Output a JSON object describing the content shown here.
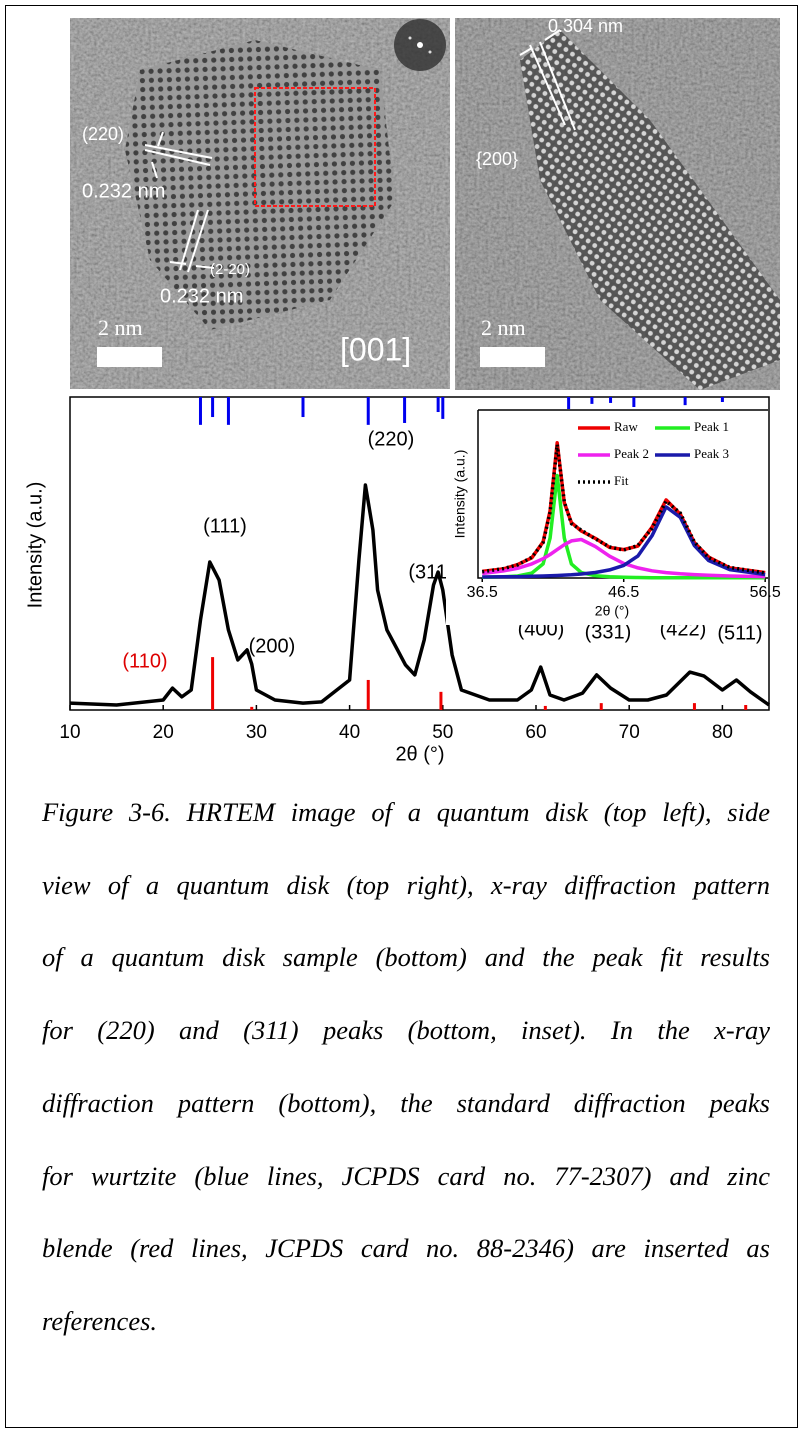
{
  "images": [
    {
      "labels": [
        "(220)",
        "0.232 nm",
        "(2-20)",
        "0.232 nm",
        "2 nm",
        "[001]"
      ]
    },
    {
      "labels": [
        "0.304 nm",
        "{200}",
        "2 nm"
      ]
    }
  ],
  "chart_data": [
    {
      "type": "line",
      "y_label": "Intensity (a.u.)",
      "x_label": "2θ (°)",
      "xlim": [
        10,
        85
      ],
      "ylim": [
        0,
        100
      ],
      "xticks": [
        10,
        20,
        30,
        40,
        50,
        60,
        70,
        80
      ],
      "x": [
        10,
        15,
        20,
        21,
        22,
        23,
        24,
        25,
        26,
        27,
        28,
        29,
        29.5,
        30,
        32,
        35,
        37,
        40,
        41,
        41.7,
        42.5,
        43,
        44,
        46,
        47,
        48,
        49,
        49.5,
        50,
        51,
        52,
        55,
        58,
        59.5,
        60.5,
        61.5,
        63,
        65,
        66.5,
        68,
        70,
        72,
        74,
        76.5,
        78,
        80,
        81.5,
        83,
        85
      ],
      "series": [
        {
          "color": "#000000",
          "values": [
            2.2,
            1.6,
            3.2,
            7.0,
            4.2,
            6.4,
            28.8,
            47.3,
            41.5,
            25.6,
            16.0,
            19.2,
            14.7,
            6.4,
            3.2,
            2.2,
            2.6,
            9.6,
            47.9,
            71.9,
            57.5,
            38.3,
            25.6,
            14.4,
            11.2,
            22.4,
            39.9,
            44.1,
            38.3,
            17.6,
            6.4,
            3.2,
            3.2,
            6.4,
            13.7,
            4.8,
            3.2,
            5.4,
            11.2,
            7.0,
            3.2,
            3.2,
            4.8,
            12.1,
            10.9,
            6.4,
            9.6,
            5.8,
            1.6
          ]
        }
      ],
      "references": [
        {
          "color": "#0000ee",
          "from": "top",
          "x": [
            24,
            25.3,
            27,
            35,
            42,
            45.9,
            49.5,
            50,
            63.5,
            66,
            68,
            70.5,
            76,
            80
          ],
          "values": [
            8.9,
            6.4,
            8.9,
            6.4,
            8.9,
            8.3,
            4.8,
            7.0,
            4.2,
            2.2,
            1.9,
            3.2,
            2.6,
            1.6
          ]
        },
        {
          "color": "#ee0000",
          "from": "bottom",
          "x": [
            25.3,
            29.5,
            42,
            49.8,
            61,
            67,
            77,
            82.5
          ],
          "values": [
            16.9,
            1.0,
            9.6,
            5.8,
            1.3,
            2.2,
            2.2,
            1.6
          ]
        }
      ],
      "annotations": [
        {
          "text": "(110)",
          "color": "#dd0000"
        },
        {
          "text": "(111)",
          "color": "#000000"
        },
        {
          "text": "(200)",
          "color": "#000000"
        },
        {
          "text": "(220)",
          "color": "#000000"
        },
        {
          "text": "(311)",
          "color": "#000000"
        },
        {
          "text": "(400)",
          "color": "#000000"
        },
        {
          "text": "(331)",
          "color": "#000000"
        },
        {
          "text": "(422)",
          "color": "#000000"
        },
        {
          "text": "(511)",
          "color": "#000000"
        }
      ]
    },
    {
      "type": "line",
      "y_label": "Intensity (a.u.)",
      "x_label": "2θ (°)",
      "xlim": [
        36.2,
        56.7
      ],
      "ylim": [
        0,
        100
      ],
      "xticks": [
        36.5,
        46.5,
        56.5
      ],
      "legend": "top",
      "x": [
        36.5,
        38,
        39,
        40,
        40.8,
        41.3,
        41.8,
        42.3,
        42.8,
        43.5,
        44.5,
        45.5,
        46.5,
        47.5,
        48.5,
        49.5,
        50.5,
        51.5,
        52.5,
        54,
        56.5
      ],
      "series": [
        {
          "name": "Raw",
          "color": "#ee0000",
          "dash": "solid",
          "values": [
            3.9,
            5.4,
            8.0,
            12.0,
            21.5,
            40.0,
            80.5,
            44.8,
            33.0,
            28.0,
            23.6,
            18.2,
            16.9,
            19.0,
            30.2,
            46.5,
            38.0,
            21.0,
            12.5,
            6.0,
            3.2
          ]
        },
        {
          "name": "Peak 1",
          "color": "#22ee22",
          "dash": "solid",
          "values": [
            0.4,
            0.7,
            1.2,
            2.9,
            8.4,
            23.8,
            61.0,
            23.8,
            8.4,
            3.2,
            1.3,
            0.7,
            0.4,
            0.3,
            0.2,
            0.2,
            0.1,
            0.1,
            0.1,
            0.1,
            0.1
          ]
        },
        {
          "name": "Peak 2",
          "color": "#ee22ee",
          "dash": "solid",
          "values": [
            2.7,
            4.2,
            5.8,
            8.4,
            11.5,
            14.0,
            16.9,
            19.8,
            22.1,
            22.9,
            18.7,
            13.0,
            8.7,
            6.0,
            4.3,
            3.2,
            2.5,
            2.0,
            1.6,
            1.2,
            0.8
          ]
        },
        {
          "name": "Peak 3",
          "color": "#1a1aaa",
          "dash": "solid",
          "values": [
            0.6,
            0.7,
            0.8,
            1.0,
            1.2,
            1.3,
            1.5,
            1.7,
            1.9,
            2.4,
            3.3,
            4.8,
            7.5,
            13.1,
            25.1,
            42.3,
            36.1,
            19.3,
            10.4,
            5.0,
            2.1
          ]
        },
        {
          "name": "Fit",
          "color": "#000000",
          "dash": "dotted",
          "values": [
            3.7,
            5.6,
            7.8,
            12.3,
            21.1,
            39.1,
            79.4,
            45.3,
            32.4,
            28.5,
            23.3,
            18.5,
            16.6,
            19.4,
            29.6,
            45.7,
            38.7,
            21.4,
            12.1,
            6.3,
            3.0
          ]
        }
      ]
    }
  ],
  "caption_lines": [
    "Figure 3-6. HRTEM image of a quantum disk (top left), side",
    "view of a quantum disk (top right), x-ray diffraction pattern",
    "of a quantum disk sample (bottom) and the peak fit results",
    "for (220) and (311) peaks (bottom, inset). In the x-ray",
    "diffraction pattern (bottom), the standard diffraction peaks",
    "for wurtzite (blue lines, JCPDS card no. 77-2307) and zinc",
    "blende (red lines, JCPDS card no. 88-2346) are inserted as",
    "references."
  ]
}
